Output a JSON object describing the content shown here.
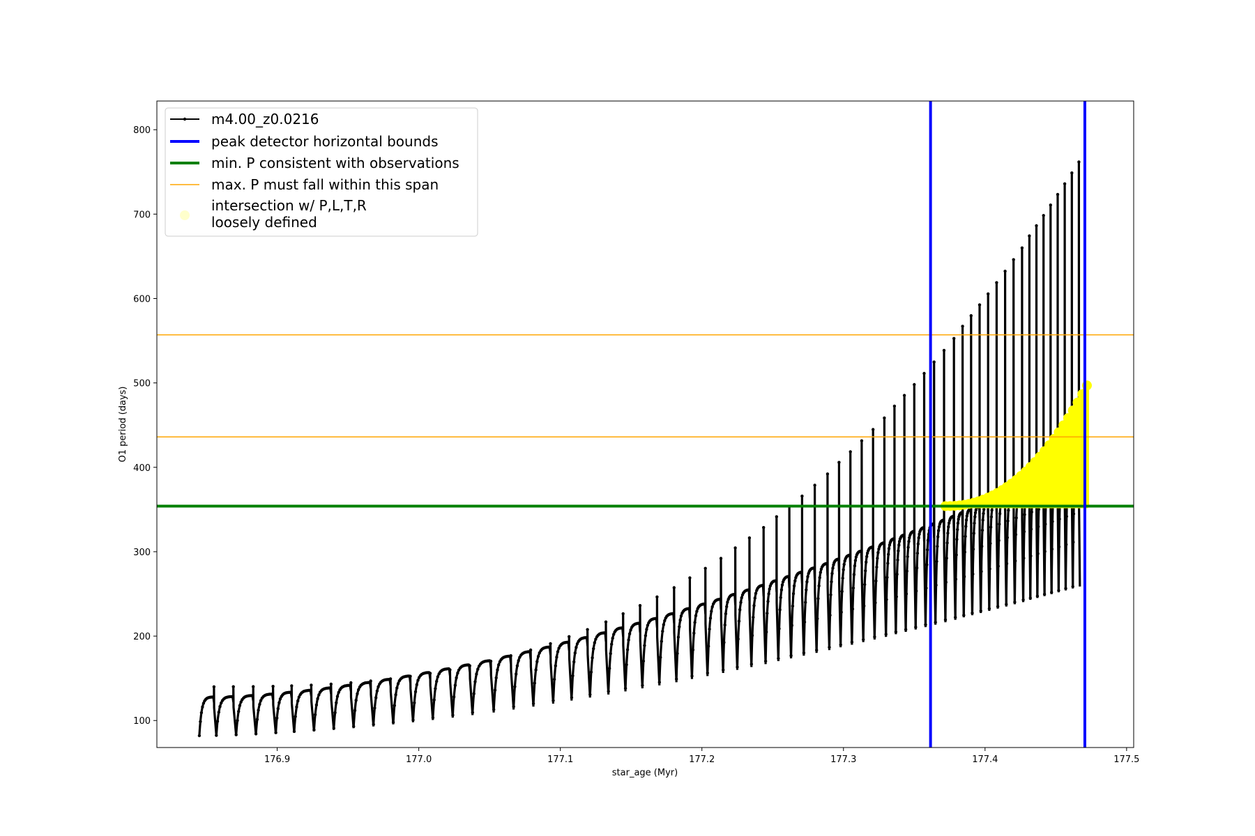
{
  "chart_data": {
    "type": "line",
    "title": "",
    "xlabel": "star_age (Myr)",
    "ylabel": "O1 period (days)",
    "xlim": [
      176.815,
      177.505
    ],
    "ylim": [
      68,
      834
    ],
    "xticks": [
      "176.9",
      "177.0",
      "177.1",
      "177.2",
      "177.3",
      "177.4",
      "177.5"
    ],
    "yticks": [
      "100",
      "200",
      "300",
      "400",
      "500",
      "600",
      "700",
      "800"
    ],
    "grid": false,
    "legend_position": "top-left",
    "colors": {
      "model": "#000000",
      "peak_bounds": "#0000ff",
      "min_period": "#008000",
      "max_span": "#ffa500",
      "intersection": "#ffff00",
      "intersection_legend": "#ffffcc"
    },
    "legend": [
      {
        "label": "m4.00_z0.0216",
        "style": "line-marker"
      },
      {
        "label": "peak detector horizontal bounds",
        "style": "thick-line"
      },
      {
        "label": "min. P consistent with observations",
        "style": "thick-line"
      },
      {
        "label": "max. P must fall within this span",
        "style": "thin-line"
      },
      {
        "label": "intersection w/ P,L,T,R",
        "label2": "loosely defined",
        "style": "marker"
      }
    ],
    "series": [
      {
        "name": "m4.00_z0.0216",
        "kind": "thermal-pulse cycles",
        "age_start": 176.845,
        "age_end": 177.47,
        "pulse_ages": [
          176.845,
          176.857,
          176.871,
          176.885,
          176.899,
          176.912,
          176.926,
          176.94,
          176.954,
          176.968,
          176.982,
          176.996,
          177.01,
          177.024,
          177.038,
          177.053,
          177.067,
          177.081,
          177.095,
          177.108,
          177.121,
          177.134,
          177.146,
          177.158,
          177.17,
          177.182,
          177.193,
          177.204,
          177.215,
          177.225,
          177.235,
          177.245,
          177.254,
          177.263,
          177.272,
          177.281,
          177.29,
          177.298,
          177.306,
          177.314,
          177.322,
          177.33,
          177.337,
          177.344,
          177.351,
          177.358,
          177.365,
          177.372,
          177.379,
          177.385,
          177.391,
          177.397,
          177.403,
          177.409,
          177.415,
          177.421,
          177.427,
          177.432,
          177.437,
          177.442,
          177.447,
          177.452,
          177.457,
          177.462,
          177.467
        ],
        "baseline_start": 100,
        "baseline_end": 320,
        "pulse_peak_start": 140,
        "pulse_peak_end": 783
      }
    ],
    "vlines": [
      {
        "name": "peak detector horizontal bounds",
        "x": 177.3615
      },
      {
        "name": "peak detector horizontal bounds",
        "x": 177.4705
      }
    ],
    "hlines": [
      {
        "name": "min. P consistent with observations",
        "y": 354
      },
      {
        "name": "max. P must fall within this span",
        "y": 436
      },
      {
        "name": "max. P must fall within this span",
        "y": 557
      }
    ],
    "intersection": {
      "age_start": 177.372,
      "age_end": 177.472,
      "period_min": 354,
      "period_start": 354,
      "period_end": 497
    }
  }
}
